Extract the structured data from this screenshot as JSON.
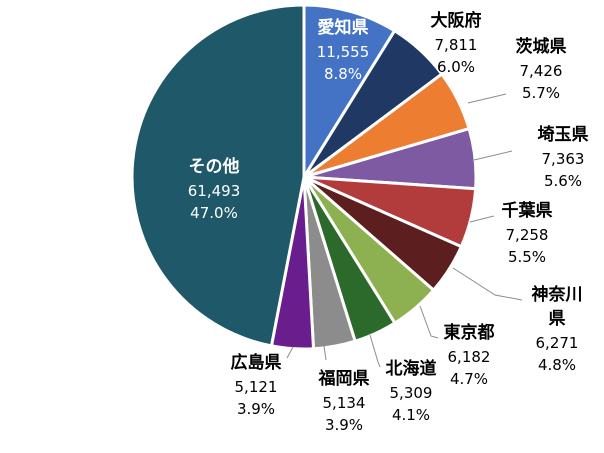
{
  "chart_data": {
    "type": "pie",
    "title": "",
    "slices": [
      {
        "label": "愛知県",
        "value": 11555,
        "value_text": "11,555",
        "pct_text": "8.8%",
        "color": "#4472C4"
      },
      {
        "label": "大阪府",
        "value": 7811,
        "value_text": "7,811",
        "pct_text": "6.0%",
        "color": "#203864"
      },
      {
        "label": "茨城県",
        "value": 7426,
        "value_text": "7,426",
        "pct_text": "5.7%",
        "color": "#ED7D31"
      },
      {
        "label": "埼玉県",
        "value": 7363,
        "value_text": "7,363",
        "pct_text": "5.6%",
        "color": "#7E5AA2"
      },
      {
        "label": "千葉県",
        "value": 7258,
        "value_text": "7,258",
        "pct_text": "5.5%",
        "color": "#B23B3B"
      },
      {
        "label": "神奈川県",
        "label_lines": [
          "神奈川",
          "県"
        ],
        "value": 6271,
        "value_text": "6,271",
        "pct_text": "4.8%",
        "color": "#5C1E1E"
      },
      {
        "label": "東京都",
        "value": 6182,
        "value_text": "6,182",
        "pct_text": "4.7%",
        "color": "#8DB150"
      },
      {
        "label": "北海道",
        "value": 5309,
        "value_text": "5,309",
        "pct_text": "4.1%",
        "color": "#2C6A2C"
      },
      {
        "label": "福岡県",
        "value": 5134,
        "value_text": "5,134",
        "pct_text": "3.9%",
        "color": "#8C8C8C"
      },
      {
        "label": "広島県",
        "value": 5121,
        "value_text": "5,121",
        "pct_text": "3.9%",
        "color": "#6A1E8E"
      },
      {
        "label": "その他",
        "value": 61493,
        "value_text": "61,493",
        "pct_text": "47.0%",
        "color": "#1F5868"
      }
    ]
  }
}
